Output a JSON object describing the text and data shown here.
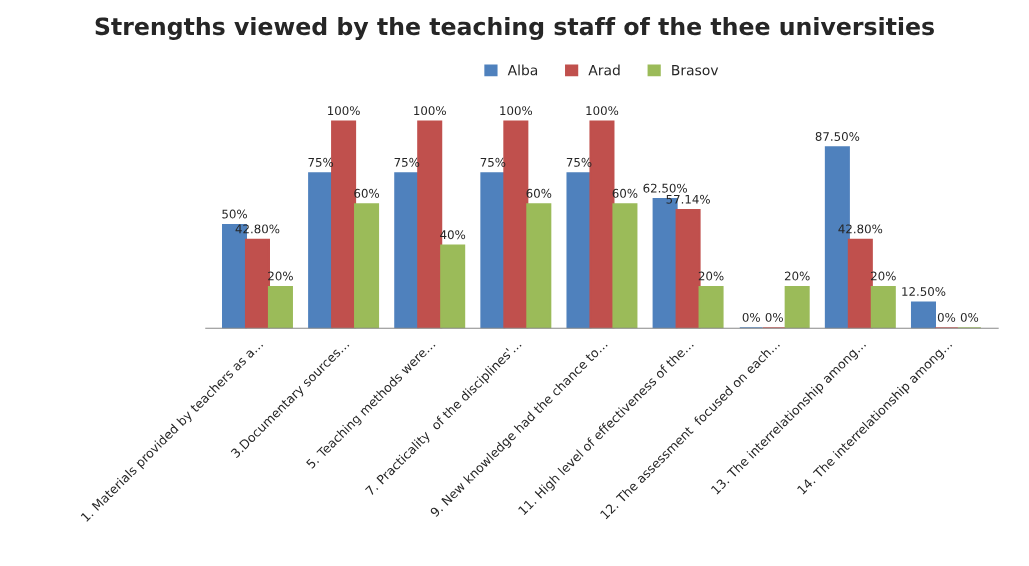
{
  "chart_data": {
    "type": "bar",
    "title": "Strengths viewed by the teaching staff of the thee universities",
    "categories": [
      "1. Materials provided by teachers as a…",
      "3.Documentary sources…",
      "5. Teaching methods were…",
      "7. Practicality  of the disciplines'…",
      "9. New knowledge had the chance to…",
      "11. High level of effectiveness of the…",
      "12. The assessment  focused on each…",
      "13. The interrelationship among…",
      "14. The interrelationship among…"
    ],
    "series": [
      {
        "name": "Alba",
        "color": "#4f81bd",
        "values": [
          50,
          75,
          75,
          75,
          75,
          62.5,
          0,
          87.5,
          12.5
        ],
        "value_labels": [
          "50%",
          "75%",
          "75%",
          "75%",
          "75%",
          "62.50%",
          "0%",
          "87.50%",
          "12.50%"
        ]
      },
      {
        "name": "Arad",
        "color": "#c0504d",
        "values": [
          42.8,
          100,
          100,
          100,
          100,
          57.14,
          0,
          42.8,
          0
        ],
        "value_labels": [
          "42.80%",
          "100%",
          "100%",
          "100%",
          "100%",
          "57.14%",
          "0%",
          "42.80%",
          "0%"
        ]
      },
      {
        "name": "Brasov",
        "color": "#9bbb59",
        "values": [
          20,
          60,
          40,
          60,
          60,
          20,
          20,
          20,
          0
        ],
        "value_labels": [
          "20%",
          "60%",
          "40%",
          "60%",
          "60%",
          "20%",
          "20%",
          "20%",
          "0%"
        ]
      }
    ],
    "legend": "top",
    "grid": false
  }
}
